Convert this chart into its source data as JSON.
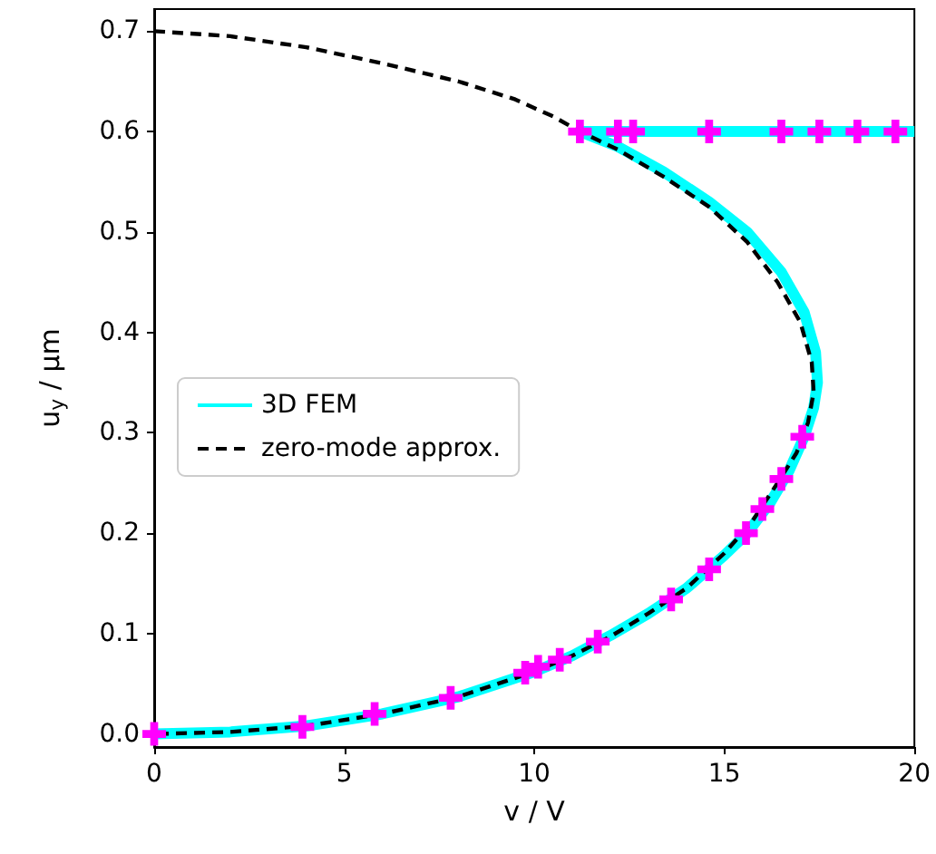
{
  "chart_data": {
    "type": "line",
    "xlabel": "v / V",
    "ylabel": "u$_{y}$ / μm",
    "xlim": [
      0,
      20
    ],
    "xticks": [
      0,
      5,
      10,
      15,
      20
    ],
    "ylim": [
      -0.013,
      0.722
    ],
    "yticks": [
      {
        "value": 0,
        "label": "0.0"
      },
      0.1,
      0.2,
      0.3,
      0.4,
      0.5,
      0.6,
      0.7
    ],
    "grid": false,
    "legend": "left",
    "series": [
      {
        "name": "3D FEM",
        "color": "#00ffff",
        "line_style": "solid",
        "marker": "none",
        "x": [
          0,
          2,
          4,
          6,
          8,
          10,
          11,
          12,
          13,
          14,
          15,
          15.6,
          16.2,
          16.7,
          17.1,
          17.35,
          17.45,
          17.4,
          17.1,
          16.5,
          15.6,
          14.6,
          13.4,
          12.2,
          11.2,
          20
        ],
        "values": [
          0,
          0.002,
          0.008,
          0.02,
          0.037,
          0.062,
          0.078,
          0.098,
          0.12,
          0.145,
          0.178,
          0.2,
          0.23,
          0.262,
          0.296,
          0.325,
          0.35,
          0.38,
          0.42,
          0.46,
          0.5,
          0.53,
          0.56,
          0.585,
          0.6,
          0.6
        ]
      },
      {
        "type": "scatter",
        "color": "#ff00ff",
        "marker": "cross",
        "x": [
          0,
          3.9,
          5.8,
          7.8,
          9.76,
          10.1,
          10.67,
          11.67,
          13.6,
          14.6,
          15.57,
          16.0,
          16.5,
          17.05,
          11.2,
          12.2,
          12.6,
          14.6,
          16.5,
          17.5,
          18.5,
          19.5
        ],
        "values": [
          0,
          0.007,
          0.02,
          0.036,
          0.061,
          0.067,
          0.074,
          0.092,
          0.134,
          0.164,
          0.2,
          0.224,
          0.254,
          0.296,
          0.6,
          0.6,
          0.6,
          0.6,
          0.6,
          0.6,
          0.6,
          0.6
        ]
      },
      {
        "name": "zero-mode approx.",
        "color": "#000000",
        "line_style": "dashed",
        "marker": "none",
        "x": [
          0,
          2,
          4,
          6,
          8,
          9.5,
          10.5,
          11.2,
          12.2,
          13.4,
          14.6,
          15.6,
          16.4,
          17,
          17.3,
          17.35,
          17.2,
          16.9,
          16.4,
          15.7,
          15,
          14,
          13,
          12,
          11,
          10,
          8,
          6,
          4,
          2,
          0
        ],
        "values": [
          0.7,
          0.695,
          0.684,
          0.668,
          0.65,
          0.632,
          0.615,
          0.6,
          0.582,
          0.555,
          0.525,
          0.49,
          0.45,
          0.41,
          0.37,
          0.34,
          0.31,
          0.28,
          0.25,
          0.21,
          0.18,
          0.145,
          0.12,
          0.097,
          0.078,
          0.062,
          0.037,
          0.02,
          0.008,
          0.002,
          0
        ]
      }
    ]
  }
}
